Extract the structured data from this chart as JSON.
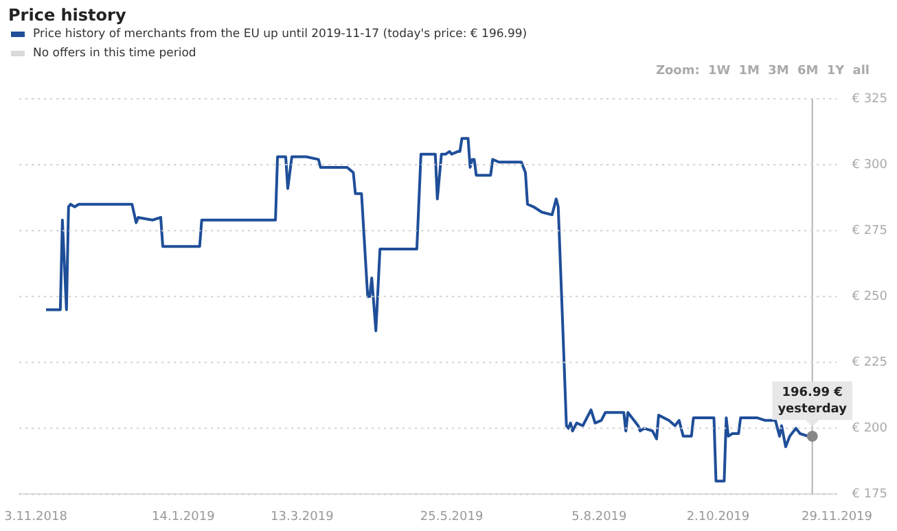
{
  "chart_data": {
    "type": "line",
    "title": "Price history",
    "legend": "top left",
    "grid": "y",
    "line_style": "solid",
    "marker": "none",
    "xlim": [
      "2018-10-26",
      "2019-11-29"
    ],
    "xticks": [
      {
        "value": "2018-11-03",
        "label": "3.11.2018"
      },
      {
        "value": "2019-01-14",
        "label": "14.1.2019"
      },
      {
        "value": "2019-03-13",
        "label": "13.3.2019"
      },
      {
        "value": "2019-05-25",
        "label": "25.5.2019"
      },
      {
        "value": "2019-08-05",
        "label": "5.8.2019"
      },
      {
        "value": "2019-10-02",
        "label": "2.10.2019"
      },
      {
        "value": "2019-11-29",
        "label": "29.11.2019"
      }
    ],
    "ylim": [
      175,
      325
    ],
    "yticks": [
      {
        "value": 175,
        "label": "€ 175"
      },
      {
        "value": 200,
        "label": "€ 200"
      },
      {
        "value": 225,
        "label": "€ 225"
      },
      {
        "value": 250,
        "label": "€ 250"
      },
      {
        "value": 275,
        "label": "€ 275"
      },
      {
        "value": 300,
        "label": "€ 300"
      },
      {
        "value": 325,
        "label": "€ 325"
      }
    ],
    "series": [
      {
        "name": "Price history of merchants from the EU up until 2019-11-17 (today's price: € 196.99)",
        "color": "#1f4e99",
        "x": [
          "2018-11-08",
          "2018-11-15",
          "2018-11-16",
          "2018-11-18",
          "2018-11-19",
          "2018-11-20",
          "2018-11-22",
          "2018-11-24",
          "2018-12-20",
          "2018-12-22",
          "2018-12-23",
          "2018-12-30",
          "2019-01-03",
          "2019-01-04",
          "2019-01-22",
          "2019-01-23",
          "2019-02-28",
          "2019-03-01",
          "2019-03-05",
          "2019-03-06",
          "2019-03-08",
          "2019-03-15",
          "2019-03-21",
          "2019-03-22",
          "2019-04-04",
          "2019-04-07",
          "2019-04-08",
          "2019-04-11",
          "2019-04-14",
          "2019-04-15",
          "2019-04-16",
          "2019-04-18",
          "2019-04-20",
          "2019-05-08",
          "2019-05-10",
          "2019-05-17",
          "2019-05-18",
          "2019-05-20",
          "2019-05-22",
          "2019-05-24",
          "2019-05-25",
          "2019-05-28",
          "2019-05-29",
          "2019-05-30",
          "2019-06-02",
          "2019-06-03",
          "2019-06-04",
          "2019-06-05",
          "2019-06-06",
          "2019-06-13",
          "2019-06-14",
          "2019-06-17",
          "2019-06-28",
          "2019-06-30",
          "2019-07-01",
          "2019-07-04",
          "2019-07-08",
          "2019-07-13",
          "2019-07-15",
          "2019-07-16",
          "2019-07-18",
          "2019-07-20",
          "2019-07-21",
          "2019-07-22",
          "2019-07-23",
          "2019-07-25",
          "2019-07-28",
          "2019-08-01",
          "2019-08-03",
          "2019-08-06",
          "2019-08-08",
          "2019-08-17",
          "2019-08-18",
          "2019-08-19",
          "2019-08-22",
          "2019-08-24",
          "2019-08-25",
          "2019-08-27",
          "2019-08-31",
          "2019-09-02",
          "2019-09-03",
          "2019-09-08",
          "2019-09-11",
          "2019-09-13",
          "2019-09-15",
          "2019-09-19",
          "2019-09-20",
          "2019-09-30",
          "2019-10-01",
          "2019-10-05",
          "2019-10-06",
          "2019-10-07",
          "2019-10-09",
          "2019-10-12",
          "2019-10-13",
          "2019-10-21",
          "2019-10-25",
          "2019-10-30",
          "2019-11-01",
          "2019-11-02",
          "2019-11-04",
          "2019-11-06",
          "2019-11-09",
          "2019-11-11",
          "2019-11-15",
          "2019-11-17"
        ],
        "values": [
          245,
          245,
          279,
          245,
          284,
          285,
          284,
          285,
          285,
          278,
          280,
          279,
          280,
          269,
          269,
          279,
          279,
          303,
          303,
          291,
          303,
          303,
          302,
          299,
          299,
          297,
          289,
          289,
          250,
          250,
          257,
          237,
          268,
          268,
          304,
          304,
          287,
          304,
          304,
          305,
          304,
          305,
          305,
          310,
          310,
          299,
          302,
          302,
          296,
          296,
          302,
          301,
          301,
          297,
          285,
          284,
          282,
          281,
          287,
          284,
          243,
          201,
          200,
          202,
          199,
          202,
          201,
          207,
          202,
          203,
          206,
          206,
          199,
          206,
          203,
          201,
          199,
          200,
          199,
          196,
          205,
          203,
          201,
          203,
          197,
          197,
          204,
          204,
          180,
          180,
          204,
          197,
          198,
          198,
          204,
          204,
          203,
          203,
          197,
          201,
          193,
          197,
          200,
          198,
          197,
          196.99
        ]
      },
      {
        "name": "No offers in this time period",
        "color": "#d9d9d9"
      }
    ],
    "ref_lines": [
      {
        "axis": "x",
        "value": "2019-11-17",
        "color": "#b3b3b3",
        "line_style": "solid"
      }
    ],
    "annotations": [
      {
        "text": "196.99 € yesterday",
        "x": "2019-11-17",
        "y": 196.99
      },
      "Zoom: 1W 1M 3M 6M 1Y all"
    ]
  }
}
